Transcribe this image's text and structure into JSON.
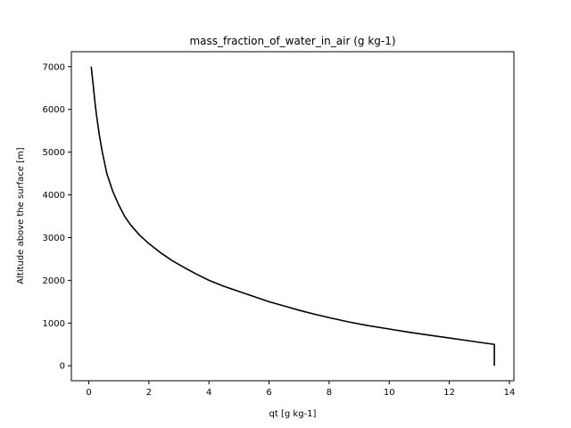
{
  "chart_data": {
    "type": "line",
    "title": "mass_fraction_of_water_in_air (g kg-1)",
    "xlabel": "qt [g kg-1]",
    "ylabel": "Altitude above the surface [m]",
    "xlim": [
      -0.58,
      14.15
    ],
    "ylim": [
      -350,
      7350
    ],
    "xticks": [
      0,
      2,
      4,
      6,
      8,
      10,
      12,
      14
    ],
    "yticks": [
      0,
      1000,
      2000,
      3000,
      4000,
      5000,
      6000,
      7000
    ],
    "grid": false,
    "line_color": "#000000",
    "series": [
      {
        "points": [
          [
            13.5,
            0
          ],
          [
            13.5,
            100
          ],
          [
            13.5,
            200
          ],
          [
            13.5,
            300
          ],
          [
            13.5,
            400
          ],
          [
            13.5,
            500
          ],
          [
            13.0,
            550
          ],
          [
            12.3,
            620
          ],
          [
            11.5,
            700
          ],
          [
            10.7,
            780
          ],
          [
            10.0,
            860
          ],
          [
            9.3,
            940
          ],
          [
            8.7,
            1020
          ],
          [
            8.1,
            1110
          ],
          [
            7.5,
            1210
          ],
          [
            7.0,
            1300
          ],
          [
            6.5,
            1400
          ],
          [
            6.0,
            1500
          ],
          [
            5.5,
            1620
          ],
          [
            5.0,
            1740
          ],
          [
            4.5,
            1860
          ],
          [
            4.0,
            2000
          ],
          [
            3.6,
            2140
          ],
          [
            3.2,
            2290
          ],
          [
            2.8,
            2450
          ],
          [
            2.4,
            2640
          ],
          [
            2.0,
            2860
          ],
          [
            1.7,
            3050
          ],
          [
            1.4,
            3290
          ],
          [
            1.2,
            3490
          ],
          [
            1.0,
            3760
          ],
          [
            0.8,
            4080
          ],
          [
            0.6,
            4500
          ],
          [
            0.45,
            5000
          ],
          [
            0.35,
            5400
          ],
          [
            0.25,
            5900
          ],
          [
            0.2,
            6200
          ],
          [
            0.15,
            6550
          ],
          [
            0.08,
            7000
          ]
        ]
      }
    ]
  }
}
